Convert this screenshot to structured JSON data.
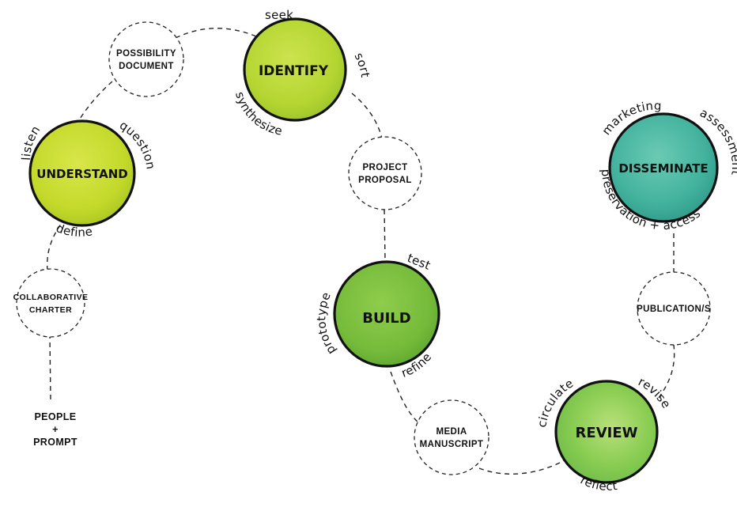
{
  "phases": {
    "understand": {
      "label": "UNDERSTAND",
      "color": "#c6dc2e",
      "verbs": {
        "listen": "listen",
        "question": "question",
        "define": "define"
      }
    },
    "identify": {
      "label": "IDENTIFY",
      "color": "#b8d935",
      "verbs": {
        "seek": "seek",
        "sort": "sort",
        "synthesize": "synthesize"
      }
    },
    "build": {
      "label": "BUILD",
      "color": "#7cc03f",
      "verbs": {
        "test": "test",
        "prototype": "prototype",
        "refine": "refine"
      }
    },
    "review": {
      "label": "REVIEW",
      "color": "#8ccf52",
      "verbs": {
        "circulate": "circulate",
        "revise": "revise",
        "reflect": "reflect"
      }
    },
    "disseminate": {
      "label": "DISSEMINATE",
      "color": "#4bb8a0",
      "verbs": {
        "marketing": "marketing",
        "assessment": "assessment",
        "preservation_access": "preservation + access"
      }
    }
  },
  "steps": {
    "possibility_document": {
      "line1": "POSSIBILITY",
      "line2": "DOCUMENT"
    },
    "project_proposal": {
      "line1": "PROJECT",
      "line2": "PROPOSAL"
    },
    "collaborative_charter": {
      "line1": "COLLABORATIVE",
      "line2": "CHARTER"
    },
    "media_manuscript": {
      "line1": "MEDIA",
      "line2": "MANUSCRIPT"
    },
    "publications": {
      "line1": "PUBLICATION/S"
    },
    "people_prompt": {
      "line1": "PEOPLE",
      "line2": "+",
      "line3": "PROMPT"
    }
  }
}
